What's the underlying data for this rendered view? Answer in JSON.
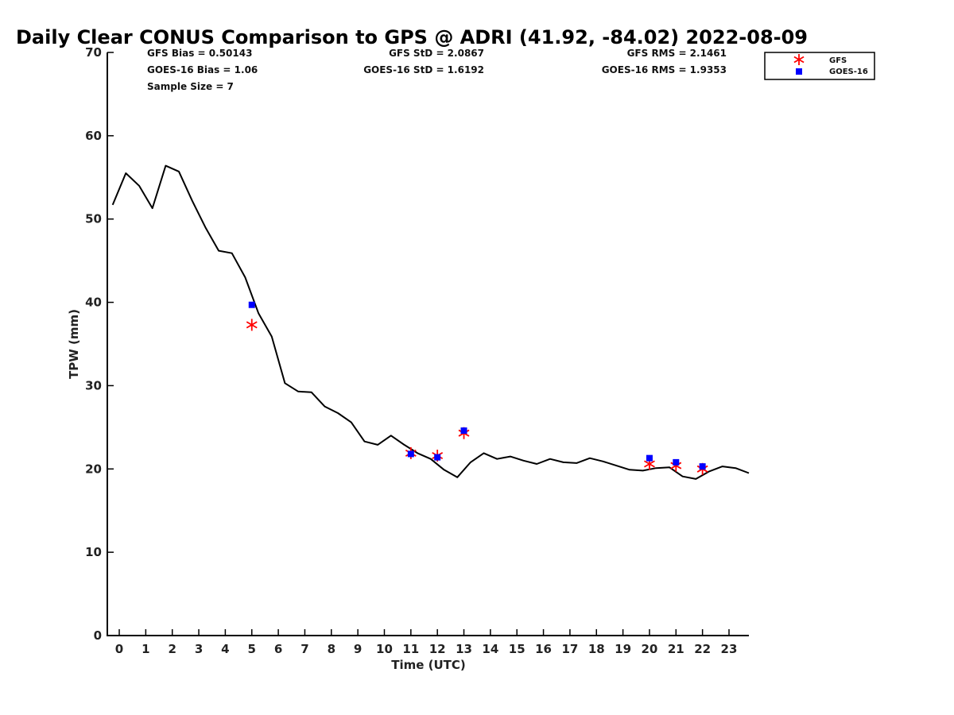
{
  "chart_data": {
    "type": "line",
    "title": "Daily Clear CONUS Comparison to GPS @ ADRI (41.92, -84.02) 2022-08-09",
    "xlabel": "Time (UTC)",
    "ylabel": "TPW (mm)",
    "xlim": [
      -0.45,
      23.75
    ],
    "ylim": [
      0,
      70
    ],
    "x_ticks": [
      0,
      1,
      2,
      3,
      4,
      5,
      6,
      7,
      8,
      9,
      10,
      11,
      12,
      13,
      14,
      15,
      16,
      17,
      18,
      19,
      20,
      21,
      22,
      23
    ],
    "y_ticks": [
      0,
      10,
      20,
      30,
      40,
      50,
      60,
      70
    ],
    "grid": false,
    "legend_position": "top-right",
    "stats": {
      "gfs_bias": "GFS Bias = 0.50143",
      "goes_bias": "GOES-16 Bias = 1.06",
      "sample_size": "Sample Size = 7",
      "gfs_std": "GFS StD = 2.0867",
      "goes_std": "GOES-16 StD = 1.6192",
      "gfs_rms": "GFS RMS = 2.1461",
      "goes_rms": "GOES-16 RMS = 1.9353"
    },
    "series": [
      {
        "type": "line",
        "color": "#000000",
        "x": [
          -0.25,
          0.25,
          0.75,
          1.25,
          1.75,
          2.25,
          2.75,
          3.25,
          3.75,
          4.25,
          4.75,
          5.25,
          5.75,
          6.25,
          6.75,
          7.25,
          7.75,
          8.25,
          8.75,
          9.25,
          9.75,
          10.25,
          10.75,
          11.25,
          11.75,
          12.25,
          12.75,
          13.25,
          13.75,
          14.25,
          14.75,
          15.25,
          15.75,
          16.25,
          16.75,
          17.25,
          17.75,
          18.25,
          18.75,
          19.25,
          19.75,
          20.25,
          20.75,
          21.25,
          21.75,
          22.25,
          22.75,
          23.25,
          23.75
        ],
        "y": [
          51.7,
          55.5,
          54.0,
          51.3,
          56.4,
          55.7,
          52.2,
          49.0,
          46.2,
          45.9,
          43.0,
          38.7,
          35.9,
          30.3,
          29.3,
          29.2,
          27.5,
          26.7,
          25.6,
          23.3,
          22.9,
          24.0,
          22.9,
          21.9,
          21.2,
          19.9,
          19.0,
          20.8,
          21.9,
          21.2,
          21.5,
          21.0,
          20.6,
          21.2,
          20.8,
          20.7,
          21.3,
          20.9,
          20.4,
          19.9,
          19.8,
          20.1,
          20.2,
          19.1,
          18.8,
          19.7,
          20.3,
          20.1,
          19.5
        ]
      },
      {
        "name": "GFS",
        "type": "scatter",
        "marker": "asterisk",
        "color": "#ff0000",
        "x": [
          5,
          11,
          12,
          13,
          20,
          21,
          22
        ],
        "y": [
          37.3,
          21.9,
          21.6,
          24.3,
          20.6,
          20.4,
          20.0
        ]
      },
      {
        "name": "GOES-16",
        "type": "scatter",
        "marker": "square",
        "color": "#0000ff",
        "x": [
          5,
          11,
          12,
          13,
          20,
          21,
          22
        ],
        "y": [
          39.7,
          21.8,
          21.4,
          24.6,
          21.3,
          20.8,
          20.3
        ]
      }
    ]
  }
}
